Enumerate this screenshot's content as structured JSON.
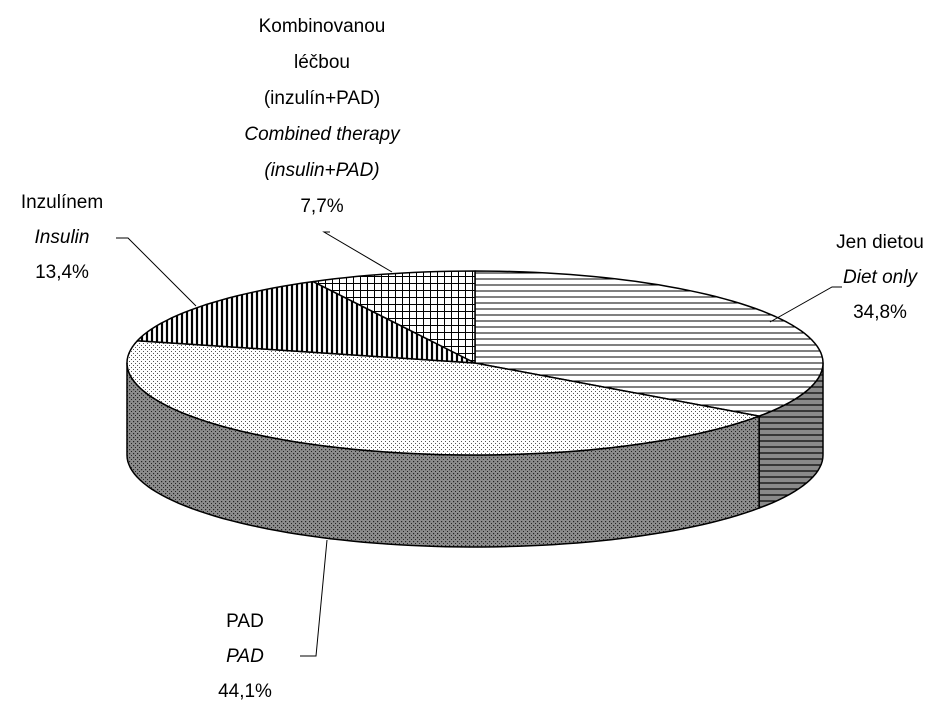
{
  "chart_data": {
    "type": "pie",
    "categories": [
      "Jen dietou",
      "PAD",
      "Inzulínem",
      "Kombinovanou léčbou (inzulín+PAD)"
    ],
    "categories_en": [
      "Diet only",
      "PAD",
      "Insulin",
      "Combined therapy (insulin+PAD)"
    ],
    "values": [
      34.8,
      44.1,
      13.4,
      7.7
    ],
    "value_labels": [
      "34,8%",
      "44,1%",
      "13,4%",
      "7,7%"
    ]
  }
}
